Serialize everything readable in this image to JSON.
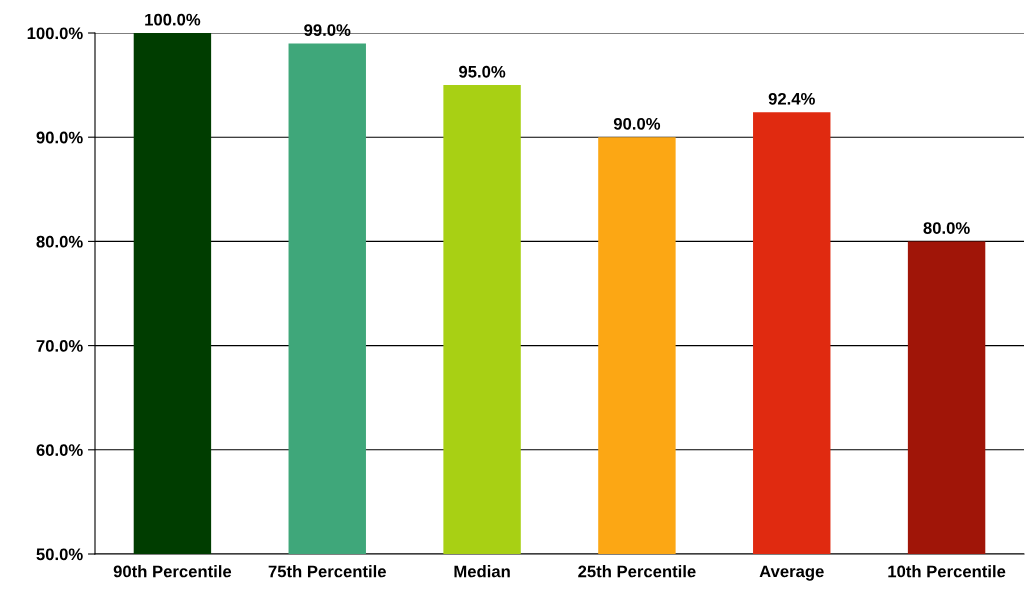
{
  "chart_data": {
    "type": "bar",
    "categories": [
      "90th Percentile",
      "75th Percentile",
      "Median",
      "25th Percentile",
      "Average",
      "10th Percentile"
    ],
    "values": [
      100.0,
      99.0,
      95.0,
      90.0,
      92.4,
      80.0
    ],
    "colors": [
      "#003d00",
      "#3fa77a",
      "#a8d014",
      "#fca714",
      "#e02a10",
      "#a01508"
    ],
    "value_labels": [
      "100.0%",
      "99.0%",
      "95.0%",
      "90.0%",
      "92.4%",
      "80.0%"
    ],
    "ylim": [
      50,
      100
    ],
    "yticks": [
      {
        "value": 50,
        "label": "50.0%"
      },
      {
        "value": 60,
        "label": "60.0%"
      },
      {
        "value": 70,
        "label": "70.0%"
      },
      {
        "value": 80,
        "label": "80.0%"
      },
      {
        "value": 90,
        "label": "90.0%"
      },
      {
        "value": 100,
        "label": "100.0%"
      }
    ],
    "grid": "y"
  }
}
